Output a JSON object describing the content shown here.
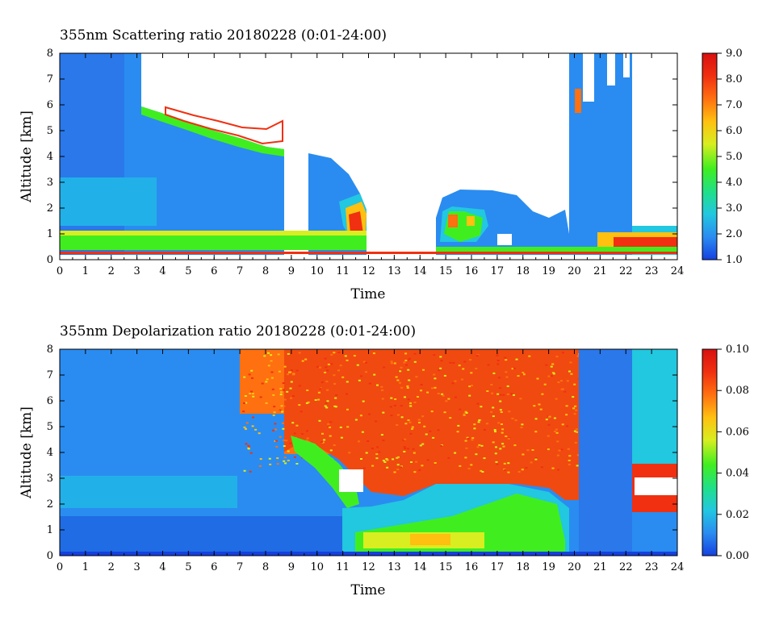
{
  "chart_data": [
    {
      "type": "heatmap",
      "title": "355nm Scattering ratio  20180228 (0:01-24:00)",
      "xlabel": "Time",
      "ylabel": "Altitude [km]",
      "xlim": [
        0,
        24
      ],
      "ylim": [
        0,
        8
      ],
      "x_ticks": [
        "0",
        "1",
        "2",
        "3",
        "4",
        "5",
        "6",
        "7",
        "8",
        "9",
        "10",
        "11",
        "12",
        "13",
        "14",
        "15",
        "16",
        "17",
        "18",
        "19",
        "20",
        "21",
        "22",
        "23",
        "24"
      ],
      "y_ticks": [
        "0",
        "1",
        "2",
        "3",
        "4",
        "5",
        "6",
        "7",
        "8"
      ],
      "colorbar": {
        "min": 1.0,
        "max": 9.0,
        "ticks": [
          "1.0",
          "2.0",
          "3.0",
          "4.0",
          "5.0",
          "6.0",
          "7.0",
          "8.0",
          "9.0"
        ],
        "colors": [
          "#1540e0",
          "#2a8cf0",
          "#22c7e0",
          "#20e088",
          "#40ee20",
          "#d8ee20",
          "#ffc010",
          "#ff7010",
          "#f03010",
          "#d81010"
        ]
      },
      "legend": "colorbar-right"
    },
    {
      "type": "heatmap",
      "title": "355nm Depolarization ratio  20180228 (0:01-24:00)",
      "xlabel": "Time",
      "ylabel": "Altitude [km]",
      "xlim": [
        0,
        24
      ],
      "ylim": [
        0,
        8
      ],
      "x_ticks": [
        "0",
        "1",
        "2",
        "3",
        "4",
        "5",
        "6",
        "7",
        "8",
        "9",
        "10",
        "11",
        "12",
        "13",
        "14",
        "15",
        "16",
        "17",
        "18",
        "19",
        "20",
        "21",
        "22",
        "23",
        "24"
      ],
      "y_ticks": [
        "0",
        "1",
        "2",
        "3",
        "4",
        "5",
        "6",
        "7",
        "8"
      ],
      "colorbar": {
        "min": 0.0,
        "max": 0.1,
        "ticks": [
          "0.00",
          "0.02",
          "0.04",
          "0.06",
          "0.08",
          "0.10"
        ],
        "colors": [
          "#1540e0",
          "#2a8cf0",
          "#22c7e0",
          "#20e088",
          "#40ee20",
          "#d8ee20",
          "#ffc010",
          "#ff7010",
          "#f03010",
          "#d81010"
        ]
      },
      "legend": "colorbar-right"
    }
  ]
}
